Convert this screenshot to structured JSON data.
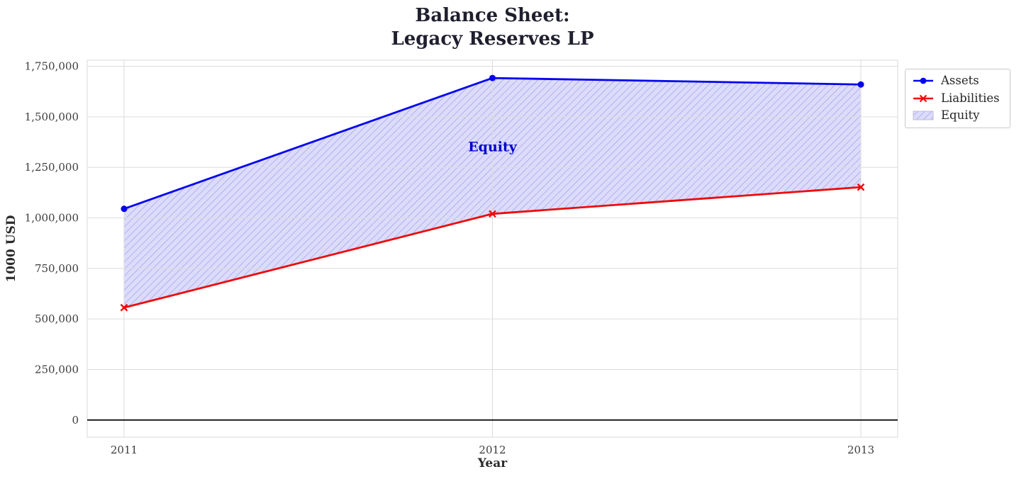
{
  "chart_data": {
    "type": "line",
    "title": "Balance Sheet:\nLegacy Reserves LP",
    "xlabel": "Year",
    "ylabel": "1000 USD",
    "x": [
      2011,
      2012,
      2013
    ],
    "xtick_labels": [
      "2011",
      "2012",
      "2013"
    ],
    "series": [
      {
        "name": "Assets",
        "color": "#0404f0",
        "marker": "circle",
        "values": [
          1045000,
          1692000,
          1660000
        ]
      },
      {
        "name": "Liabilities",
        "color": "#ee0b0b",
        "marker": "x",
        "values": [
          556000,
          1020000,
          1152000
        ]
      }
    ],
    "fill_between": {
      "label": "Equity",
      "between": [
        "Liabilities",
        "Assets"
      ],
      "fill_color": "#dcdcfa",
      "hatch": "/",
      "hatch_color": "#9d9df0"
    },
    "annotation": {
      "text": "Equity",
      "x": 2012,
      "y": 1350000,
      "color": "#0000cd"
    },
    "zero_line": {
      "y": 0,
      "color": "#000000"
    },
    "yticks": [
      0,
      250000,
      500000,
      750000,
      1000000,
      1250000,
      1500000,
      1750000
    ],
    "ytick_labels": [
      "0",
      "250,000",
      "500,000",
      "750,000",
      "1,000,000",
      "1,250,000",
      "1,500,000",
      "1,750,000"
    ],
    "xlim": [
      2010.9,
      2013.1
    ],
    "ylim": [
      -85000,
      1780000
    ],
    "grid": true,
    "grid_color": "#dcdcdc",
    "border_color": "#d9d9d9",
    "background": "#ffffff",
    "legend_position": "upper right outside"
  }
}
